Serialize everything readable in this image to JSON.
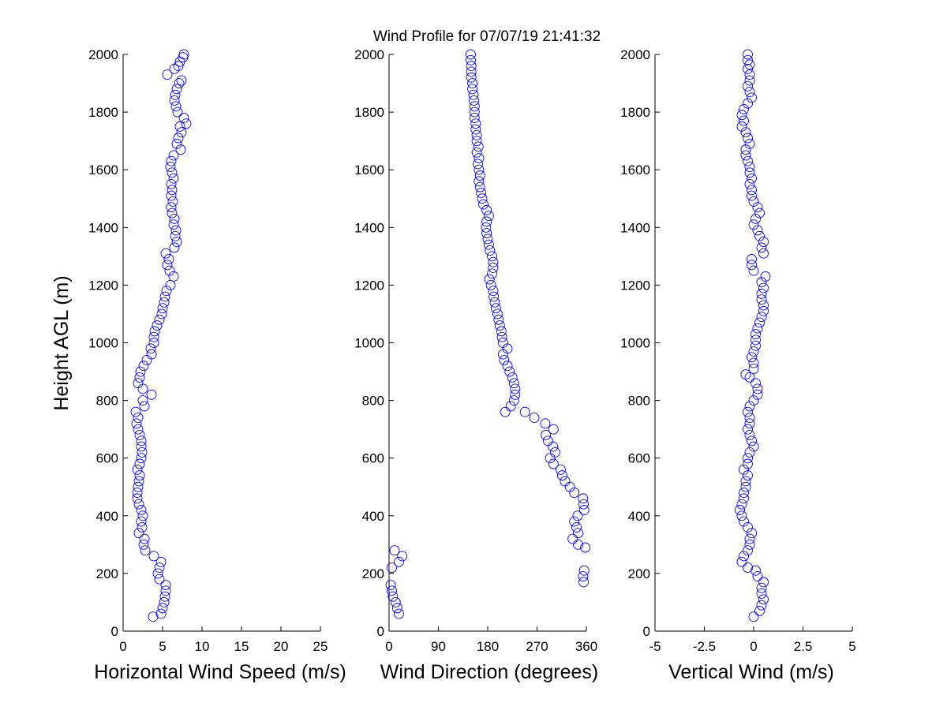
{
  "title": "Wind Profile for  07/07/19 21:41:32",
  "colors": {
    "marker": "#0000ff",
    "axis": "#000000",
    "background": "#ffffff"
  },
  "chart_data": [
    {
      "type": "scatter",
      "xlabel": "Horizontal Wind Speed (m/s)",
      "ylabel": "Height AGL (m)",
      "xlim": [
        0,
        25
      ],
      "ylim": [
        0,
        2000
      ],
      "xticks": [
        "0",
        "5",
        "10",
        "15",
        "20",
        "25"
      ],
      "yticks": [
        "0",
        "200",
        "400",
        "600",
        "800",
        "1000",
        "1200",
        "1400",
        "1600",
        "1800",
        "2000"
      ],
      "grid": false,
      "marker": "open-circle",
      "points": [
        [
          3.8,
          50
        ],
        [
          4.8,
          60
        ],
        [
          5.0,
          80
        ],
        [
          5.2,
          100
        ],
        [
          5.3,
          120
        ],
        [
          5.4,
          140
        ],
        [
          5.4,
          160
        ],
        [
          4.6,
          180
        ],
        [
          4.4,
          200
        ],
        [
          4.6,
          220
        ],
        [
          4.8,
          240
        ],
        [
          3.9,
          260
        ],
        [
          2.8,
          280
        ],
        [
          2.6,
          300
        ],
        [
          2.7,
          320
        ],
        [
          2.0,
          340
        ],
        [
          2.4,
          360
        ],
        [
          2.3,
          380
        ],
        [
          2.5,
          400
        ],
        [
          2.3,
          420
        ],
        [
          2.0,
          440
        ],
        [
          1.8,
          460
        ],
        [
          1.8,
          480
        ],
        [
          1.9,
          500
        ],
        [
          2.0,
          520
        ],
        [
          2.1,
          540
        ],
        [
          1.8,
          560
        ],
        [
          2.1,
          580
        ],
        [
          2.3,
          600
        ],
        [
          2.4,
          620
        ],
        [
          2.3,
          640
        ],
        [
          2.3,
          660
        ],
        [
          2.1,
          680
        ],
        [
          1.9,
          700
        ],
        [
          1.7,
          720
        ],
        [
          1.9,
          740
        ],
        [
          1.6,
          760
        ],
        [
          2.7,
          780
        ],
        [
          2.5,
          800
        ],
        [
          3.6,
          820
        ],
        [
          2.5,
          840
        ],
        [
          1.9,
          860
        ],
        [
          2.1,
          880
        ],
        [
          2.2,
          900
        ],
        [
          2.6,
          920
        ],
        [
          3.0,
          940
        ],
        [
          3.6,
          960
        ],
        [
          3.5,
          980
        ],
        [
          3.9,
          1000
        ],
        [
          3.9,
          1020
        ],
        [
          4.0,
          1040
        ],
        [
          4.3,
          1060
        ],
        [
          4.6,
          1080
        ],
        [
          4.9,
          1100
        ],
        [
          5.0,
          1120
        ],
        [
          5.2,
          1140
        ],
        [
          5.3,
          1160
        ],
        [
          5.5,
          1180
        ],
        [
          6.0,
          1200
        ],
        [
          6.4,
          1230
        ],
        [
          5.9,
          1250
        ],
        [
          5.6,
          1270
        ],
        [
          5.8,
          1290
        ],
        [
          5.4,
          1310
        ],
        [
          6.5,
          1330
        ],
        [
          6.8,
          1350
        ],
        [
          6.6,
          1370
        ],
        [
          6.7,
          1390
        ],
        [
          6.4,
          1410
        ],
        [
          6.5,
          1430
        ],
        [
          6.2,
          1450
        ],
        [
          6.1,
          1470
        ],
        [
          6.3,
          1490
        ],
        [
          6.1,
          1510
        ],
        [
          6.2,
          1530
        ],
        [
          6.1,
          1550
        ],
        [
          6.4,
          1570
        ],
        [
          6.2,
          1590
        ],
        [
          6.0,
          1610
        ],
        [
          6.1,
          1630
        ],
        [
          6.4,
          1650
        ],
        [
          7.3,
          1670
        ],
        [
          6.8,
          1690
        ],
        [
          7.0,
          1710
        ],
        [
          7.4,
          1730
        ],
        [
          7.2,
          1750
        ],
        [
          8.0,
          1760
        ],
        [
          7.7,
          1780
        ],
        [
          6.9,
          1800
        ],
        [
          6.7,
          1820
        ],
        [
          6.5,
          1840
        ],
        [
          6.6,
          1860
        ],
        [
          6.8,
          1880
        ],
        [
          7.1,
          1900
        ],
        [
          7.4,
          1910
        ],
        [
          5.6,
          1930
        ],
        [
          6.5,
          1950
        ],
        [
          7.0,
          1960
        ],
        [
          7.2,
          1975
        ],
        [
          7.6,
          1990
        ],
        [
          7.7,
          2000
        ]
      ]
    },
    {
      "type": "scatter",
      "xlabel": "Wind Direction (degrees)",
      "xlim": [
        0,
        360
      ],
      "ylim": [
        0,
        2000
      ],
      "xticks": [
        "0",
        "90",
        "180",
        "270",
        "360"
      ],
      "yticks": [
        "0",
        "200",
        "400",
        "600",
        "800",
        "1000",
        "1200",
        "1400",
        "1600",
        "1800",
        "2000"
      ],
      "grid": false,
      "marker": "open-circle",
      "points": [
        [
          18,
          60
        ],
        [
          15,
          80
        ],
        [
          12,
          100
        ],
        [
          7,
          120
        ],
        [
          5,
          140
        ],
        [
          3,
          160
        ],
        [
          5,
          220
        ],
        [
          18,
          240
        ],
        [
          24,
          260
        ],
        [
          10,
          280
        ],
        [
          355,
          170
        ],
        [
          354,
          190
        ],
        [
          356,
          210
        ],
        [
          358,
          290
        ],
        [
          345,
          300
        ],
        [
          335,
          320
        ],
        [
          345,
          340
        ],
        [
          342,
          360
        ],
        [
          338,
          380
        ],
        [
          344,
          400
        ],
        [
          356,
          420
        ],
        [
          355,
          440
        ],
        [
          354,
          460
        ],
        [
          338,
          480
        ],
        [
          330,
          500
        ],
        [
          321,
          520
        ],
        [
          316,
          540
        ],
        [
          313,
          560
        ],
        [
          300,
          580
        ],
        [
          294,
          600
        ],
        [
          303,
          620
        ],
        [
          299,
          640
        ],
        [
          290,
          660
        ],
        [
          286,
          680
        ],
        [
          300,
          700
        ],
        [
          285,
          720
        ],
        [
          265,
          740
        ],
        [
          212,
          760
        ],
        [
          248,
          760
        ],
        [
          222,
          780
        ],
        [
          228,
          800
        ],
        [
          230,
          820
        ],
        [
          230,
          840
        ],
        [
          228,
          860
        ],
        [
          225,
          880
        ],
        [
          220,
          900
        ],
        [
          216,
          920
        ],
        [
          210,
          940
        ],
        [
          208,
          960
        ],
        [
          216,
          980
        ],
        [
          208,
          1000
        ],
        [
          206,
          1020
        ],
        [
          205,
          1040
        ],
        [
          202,
          1060
        ],
        [
          200,
          1080
        ],
        [
          198,
          1100
        ],
        [
          195,
          1120
        ],
        [
          193,
          1140
        ],
        [
          191,
          1160
        ],
        [
          190,
          1180
        ],
        [
          186,
          1200
        ],
        [
          183,
          1220
        ],
        [
          188,
          1240
        ],
        [
          190,
          1260
        ],
        [
          190,
          1280
        ],
        [
          188,
          1300
        ],
        [
          184,
          1320
        ],
        [
          182,
          1340
        ],
        [
          180,
          1360
        ],
        [
          178,
          1380
        ],
        [
          177,
          1400
        ],
        [
          178,
          1420
        ],
        [
          182,
          1440
        ],
        [
          178,
          1460
        ],
        [
          172,
          1480
        ],
        [
          170,
          1500
        ],
        [
          168,
          1520
        ],
        [
          166,
          1540
        ],
        [
          164,
          1560
        ],
        [
          166,
          1580
        ],
        [
          164,
          1600
        ],
        [
          162,
          1620
        ],
        [
          164,
          1640
        ],
        [
          160,
          1660
        ],
        [
          163,
          1680
        ],
        [
          160,
          1700
        ],
        [
          160,
          1720
        ],
        [
          158,
          1740
        ],
        [
          158,
          1760
        ],
        [
          156,
          1780
        ],
        [
          156,
          1800
        ],
        [
          156,
          1820
        ],
        [
          155,
          1840
        ],
        [
          154,
          1860
        ],
        [
          152,
          1880
        ],
        [
          152,
          1900
        ],
        [
          150,
          1920
        ],
        [
          150,
          1940
        ],
        [
          150,
          1960
        ],
        [
          149,
          1980
        ],
        [
          149,
          2000
        ]
      ]
    },
    {
      "type": "scatter",
      "xlabel": "Vertical Wind (m/s)",
      "xlim": [
        -5,
        5
      ],
      "ylim": [
        0,
        2000
      ],
      "xticks": [
        "-5",
        "-2.5",
        "0",
        "2.5",
        "5"
      ],
      "yticks": [
        "0",
        "200",
        "400",
        "600",
        "800",
        "1000",
        "1200",
        "1400",
        "1600",
        "1800",
        "2000"
      ],
      "grid": false,
      "marker": "open-circle",
      "points": [
        [
          0.0,
          50
        ],
        [
          0.3,
          70
        ],
        [
          0.4,
          90
        ],
        [
          0.5,
          110
        ],
        [
          0.4,
          130
        ],
        [
          0.4,
          150
        ],
        [
          0.5,
          170
        ],
        [
          0.2,
          190
        ],
        [
          0.1,
          210
        ],
        [
          -0.3,
          220
        ],
        [
          -0.6,
          240
        ],
        [
          -0.5,
          260
        ],
        [
          -0.3,
          280
        ],
        [
          -0.2,
          300
        ],
        [
          -0.2,
          320
        ],
        [
          -0.1,
          340
        ],
        [
          -0.3,
          360
        ],
        [
          -0.5,
          380
        ],
        [
          -0.6,
          400
        ],
        [
          -0.7,
          420
        ],
        [
          -0.6,
          440
        ],
        [
          -0.5,
          460
        ],
        [
          -0.5,
          480
        ],
        [
          -0.4,
          500
        ],
        [
          -0.4,
          520
        ],
        [
          -0.3,
          540
        ],
        [
          -0.5,
          560
        ],
        [
          -0.3,
          580
        ],
        [
          -0.3,
          600
        ],
        [
          -0.2,
          620
        ],
        [
          0.0,
          640
        ],
        [
          -0.1,
          660
        ],
        [
          -0.2,
          680
        ],
        [
          -0.3,
          700
        ],
        [
          -0.2,
          720
        ],
        [
          -0.2,
          740
        ],
        [
          -0.3,
          760
        ],
        [
          -0.2,
          780
        ],
        [
          0.0,
          800
        ],
        [
          0.2,
          820
        ],
        [
          0.2,
          840
        ],
        [
          0.1,
          860
        ],
        [
          -0.2,
          880
        ],
        [
          -0.4,
          890
        ],
        [
          0.0,
          910
        ],
        [
          0.0,
          930
        ],
        [
          -0.1,
          950
        ],
        [
          0.0,
          970
        ],
        [
          0.1,
          990
        ],
        [
          0.1,
          1010
        ],
        [
          0.1,
          1030
        ],
        [
          0.2,
          1050
        ],
        [
          0.3,
          1070
        ],
        [
          0.4,
          1090
        ],
        [
          0.5,
          1110
        ],
        [
          0.5,
          1130
        ],
        [
          0.4,
          1150
        ],
        [
          0.4,
          1170
        ],
        [
          0.5,
          1190
        ],
        [
          0.4,
          1210
        ],
        [
          0.6,
          1230
        ],
        [
          0.0,
          1250
        ],
        [
          -0.1,
          1270
        ],
        [
          -0.1,
          1290
        ],
        [
          0.5,
          1310
        ],
        [
          0.4,
          1330
        ],
        [
          0.5,
          1350
        ],
        [
          0.3,
          1370
        ],
        [
          0.2,
          1390
        ],
        [
          0.0,
          1410
        ],
        [
          0.1,
          1430
        ],
        [
          0.3,
          1450
        ],
        [
          0.2,
          1470
        ],
        [
          0.0,
          1490
        ],
        [
          -0.1,
          1510
        ],
        [
          -0.1,
          1530
        ],
        [
          -0.2,
          1550
        ],
        [
          -0.1,
          1570
        ],
        [
          -0.2,
          1590
        ],
        [
          -0.2,
          1610
        ],
        [
          -0.3,
          1630
        ],
        [
          -0.4,
          1650
        ],
        [
          -0.4,
          1670
        ],
        [
          -0.2,
          1690
        ],
        [
          -0.3,
          1710
        ],
        [
          -0.4,
          1730
        ],
        [
          -0.6,
          1750
        ],
        [
          -0.5,
          1770
        ],
        [
          -0.6,
          1790
        ],
        [
          -0.5,
          1810
        ],
        [
          -0.3,
          1830
        ],
        [
          -0.1,
          1850
        ],
        [
          -0.2,
          1870
        ],
        [
          -0.3,
          1890
        ],
        [
          -0.2,
          1910
        ],
        [
          -0.2,
          1930
        ],
        [
          -0.3,
          1950
        ],
        [
          -0.2,
          1965
        ],
        [
          -0.3,
          1980
        ],
        [
          -0.3,
          2000
        ]
      ]
    }
  ]
}
